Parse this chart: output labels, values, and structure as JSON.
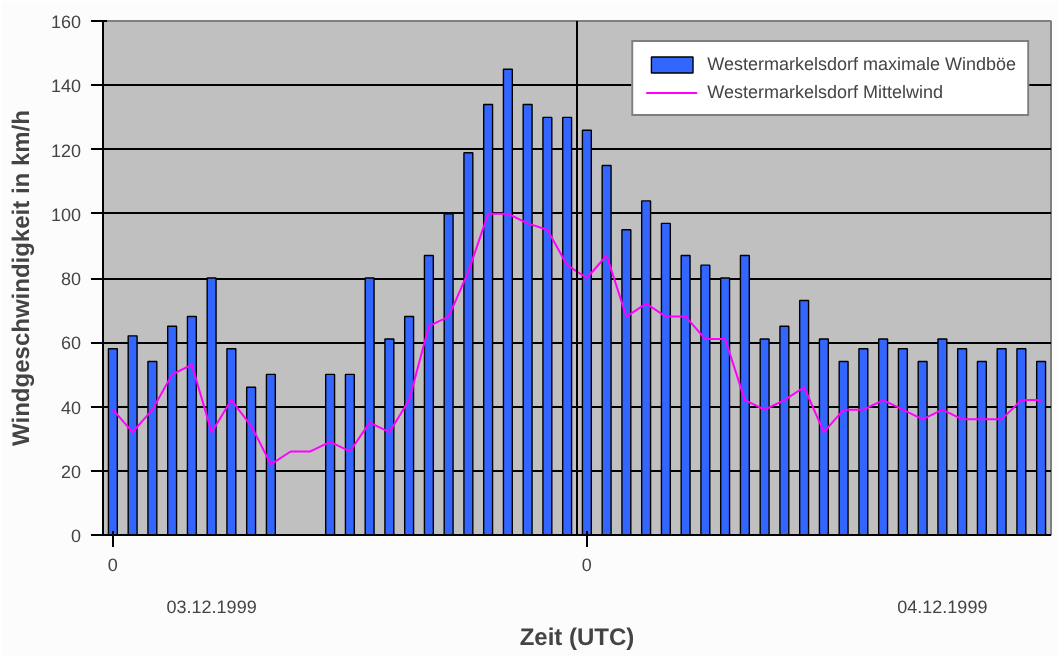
{
  "chart_data": {
    "type": "bar",
    "xlabel": "Zeit (UTC)",
    "ylabel": "Windgeschwindigkeit in km/h",
    "categories": [
      "0",
      null,
      null,
      null,
      null,
      null,
      null,
      null,
      null,
      null,
      null,
      null,
      null,
      null,
      null,
      null,
      null,
      null,
      null,
      null,
      null,
      null,
      null,
      null,
      "0",
      null,
      null,
      null,
      null,
      null,
      null,
      null,
      null,
      null,
      null,
      null,
      null,
      null,
      null,
      null,
      null,
      null,
      null,
      null,
      null,
      null,
      null,
      null
    ],
    "ylim": [
      0,
      160
    ],
    "yticks": [
      0,
      20,
      40,
      60,
      80,
      100,
      120,
      140,
      160
    ],
    "grid": "y",
    "legend": "top right",
    "annotations": [
      "03.12.1999",
      "04.12.1999"
    ],
    "series": [
      {
        "name": "Westermarkelsdorf maximale Windböe",
        "color": "#3366ff",
        "values": [
          58,
          62,
          54,
          65,
          68,
          80,
          58,
          46,
          50,
          null,
          null,
          50,
          50,
          80,
          61,
          68,
          87,
          100,
          119,
          134,
          145,
          134,
          130,
          130,
          126,
          115,
          95,
          104,
          97,
          87,
          84,
          80,
          87,
          61,
          65,
          73,
          61,
          54,
          58,
          61,
          58,
          54,
          61,
          58,
          54,
          58,
          58,
          54
        ]
      },
      {
        "name": "Westermarkelsdorf Mittelwind",
        "type": "line",
        "color": "#ff00ff",
        "values": [
          39,
          32,
          39,
          50,
          53,
          32,
          42,
          34,
          22,
          26,
          26,
          29,
          26,
          35,
          32,
          42,
          65,
          68,
          82,
          100,
          100,
          97,
          95,
          84,
          80,
          87,
          68,
          72,
          68,
          68,
          61,
          61,
          42,
          39,
          42,
          46,
          32,
          39,
          39,
          42,
          39,
          36,
          39,
          36,
          36,
          36,
          42,
          42
        ]
      }
    ]
  }
}
